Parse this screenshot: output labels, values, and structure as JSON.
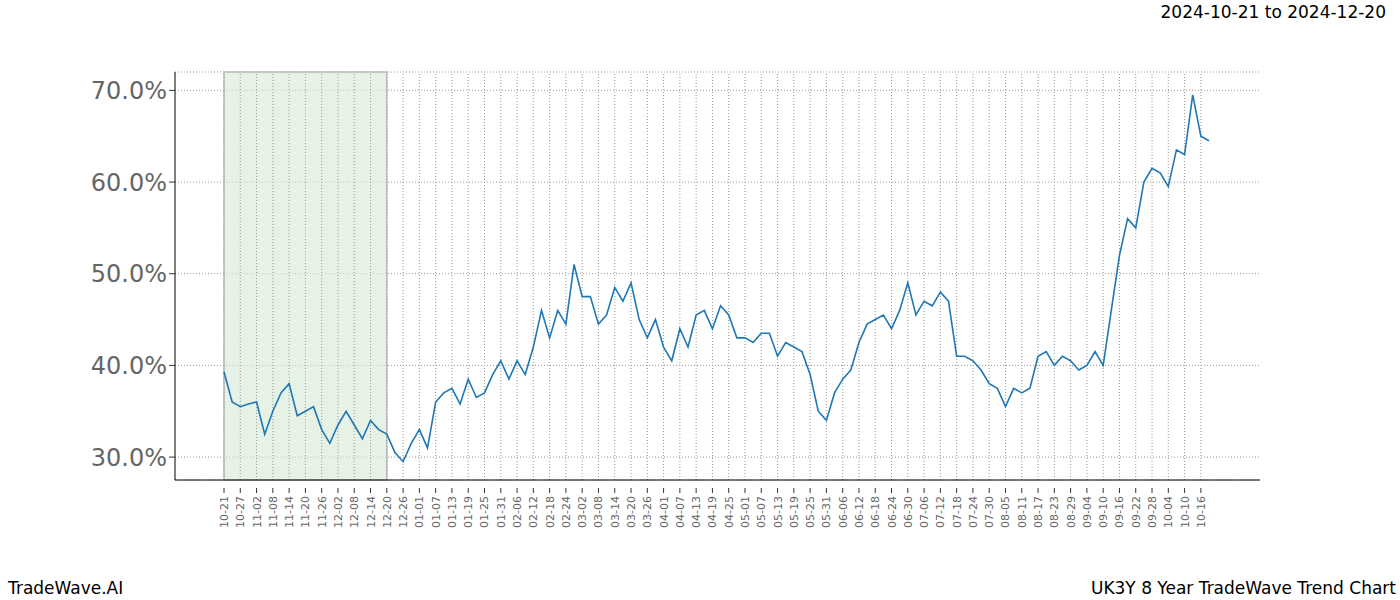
{
  "chart_data": {
    "type": "line",
    "title": "UK3Y 8 Year TradeWave Trend Chart",
    "subtitle": "2024-10-21 to 2024-12-20",
    "annotations": [
      "TradeWave.AI"
    ],
    "categories": [
      "10-21",
      null,
      "10-27",
      null,
      "11-02",
      null,
      "11-08",
      null,
      "11-14",
      null,
      "11-20",
      null,
      "11-26",
      null,
      "12-02",
      null,
      "12-08",
      null,
      "12-14",
      null,
      "12-20",
      null,
      "12-26",
      null,
      "01-01",
      null,
      "01-07",
      null,
      "01-13",
      null,
      "01-19",
      null,
      "01-25",
      null,
      "01-31",
      null,
      "02-06",
      null,
      "02-12",
      null,
      "02-18",
      null,
      "02-24",
      null,
      "03-02",
      null,
      "03-08",
      null,
      "03-14",
      null,
      "03-20",
      null,
      "03-26",
      null,
      "04-01",
      null,
      "04-07",
      null,
      "04-13",
      null,
      "04-19",
      null,
      "04-25",
      null,
      "05-01",
      null,
      "05-07",
      null,
      "05-13",
      null,
      "05-19",
      null,
      "05-25",
      null,
      "05-31",
      null,
      "06-06",
      null,
      "06-12",
      null,
      "06-18",
      null,
      "06-24",
      null,
      "06-30",
      null,
      "07-06",
      null,
      "07-12",
      null,
      "07-18",
      null,
      "07-24",
      null,
      "07-30",
      null,
      "08-05",
      null,
      "08-11",
      null,
      "08-17",
      null,
      "08-23",
      null,
      "08-29",
      null,
      "09-04",
      null,
      "09-10",
      null,
      "09-16",
      null,
      "09-22",
      null,
      "09-28",
      null,
      "10-04",
      null,
      "10-10",
      null,
      "10-16",
      null
    ],
    "series": [
      {
        "name": "UK3Y",
        "color": "#1f77b4",
        "values": [
          39.3,
          36,
          35.5,
          35.8,
          36,
          32.5,
          35,
          37,
          38,
          34.5,
          35,
          35.5,
          33,
          31.5,
          33.5,
          35,
          33.5,
          32,
          34,
          33,
          32.5,
          30.5,
          29.5,
          31.5,
          33,
          31,
          36,
          37,
          37.5,
          35.8,
          38.5,
          36.5,
          37,
          39,
          40.5,
          38.5,
          40.5,
          39,
          42,
          46,
          43,
          46,
          44.5,
          51,
          47.5,
          47.5,
          44.5,
          45.5,
          48.5,
          47,
          49,
          45,
          43,
          45,
          42,
          40.5,
          44,
          42,
          45.5,
          46,
          44,
          46.5,
          45.5,
          43,
          43,
          42.5,
          43.5,
          43.5,
          41,
          42.5,
          42,
          41.5,
          39,
          35,
          34,
          37,
          38.5,
          39.5,
          42.5,
          44.5,
          45,
          45.5,
          44,
          46,
          49,
          45.5,
          47,
          46.5,
          48,
          47,
          41,
          41,
          40.5,
          39.5,
          38,
          37.5,
          35.5,
          37.5,
          37,
          37.5,
          41,
          41.5,
          40,
          41,
          40.5,
          39.5,
          40,
          41.5,
          40,
          46,
          52,
          56,
          55,
          60,
          61.5,
          61,
          59.5,
          63.5,
          63,
          69.5,
          65,
          64.5
        ]
      }
    ],
    "ylim": [
      27.5,
      72
    ],
    "yticks": [
      {
        "value": 30,
        "label": "30.0%"
      },
      {
        "value": 40,
        "label": "40.0%"
      },
      {
        "value": 50,
        "label": "50.0%"
      },
      {
        "value": 60,
        "label": "60.0%"
      },
      {
        "value": 70,
        "label": "70.0%"
      }
    ],
    "grid": true
  }
}
